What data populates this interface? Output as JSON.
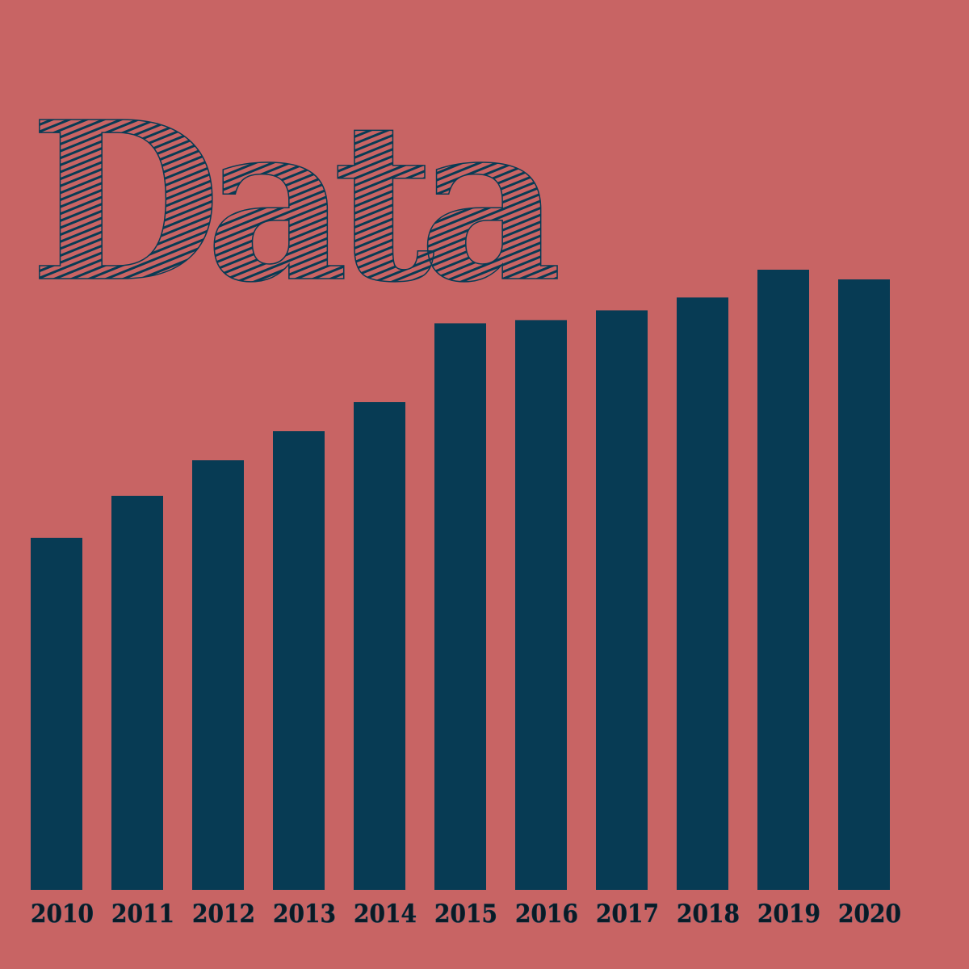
{
  "colors": {
    "background": "#c86464",
    "bar": "#073b54",
    "label": "#0b1a24"
  },
  "chart_data": {
    "type": "bar",
    "title": "Data",
    "categories": [
      "2010",
      "2011",
      "2012",
      "2013",
      "2014",
      "2015",
      "2016",
      "2017",
      "2018",
      "2019",
      "2020"
    ],
    "values": [
      54.5,
      61,
      66.5,
      71,
      75.5,
      87.7,
      88.2,
      89.7,
      91.7,
      96,
      94.5
    ],
    "xlabel": "",
    "ylabel": "",
    "ylim": [
      0,
      100
    ],
    "grid": false,
    "legend": "none"
  }
}
